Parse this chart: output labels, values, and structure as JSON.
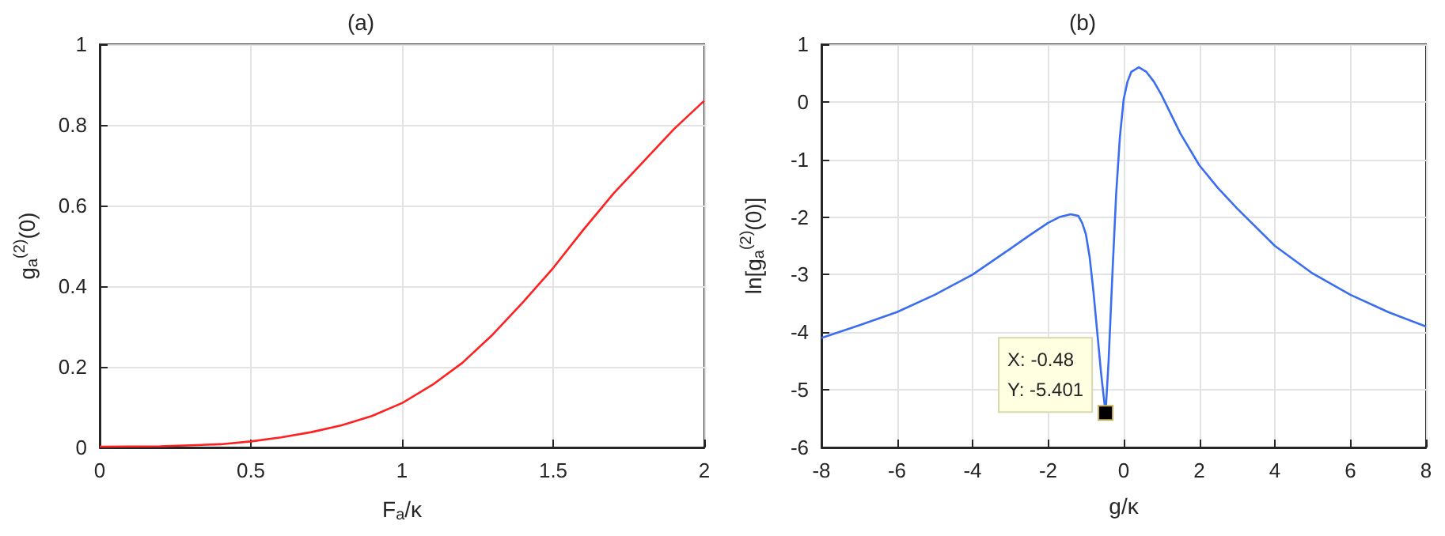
{
  "chart_data": [
    {
      "type": "line",
      "title": "(a)",
      "xlabel": "F$_{a}$/κ",
      "ylabel": "g$_{a}$$^{(2)}$(0)",
      "x": [
        0,
        0.2,
        0.4,
        0.5,
        0.6,
        0.7,
        0.8,
        0.9,
        1.0,
        1.1,
        1.2,
        1.3,
        1.4,
        1.5,
        1.6,
        1.7,
        1.8,
        1.9,
        2.0
      ],
      "series": [
        {
          "color": "#ff2020",
          "values": [
            0.002,
            0.003,
            0.008,
            0.015,
            0.025,
            0.038,
            0.055,
            0.078,
            0.11,
            0.155,
            0.21,
            0.28,
            0.36,
            0.445,
            0.54,
            0.63,
            0.71,
            0.79,
            0.86
          ]
        }
      ],
      "xlim": [
        0,
        2
      ],
      "xticks": [
        0,
        0.5,
        1,
        1.5,
        2
      ],
      "ylim": [
        0,
        1
      ],
      "yticks": [
        0,
        0.2,
        0.4,
        0.6,
        0.8,
        1
      ],
      "grid": true,
      "marker": "none",
      "line_style": "solid"
    },
    {
      "type": "line",
      "title": "(b)",
      "xlabel": "g/κ",
      "ylabel": "ln[g$_{a}$$^{(2)}$(0)]",
      "x": [
        -8,
        -7,
        -6,
        -5,
        -4,
        -3,
        -2.5,
        -2,
        -1.7,
        -1.4,
        -1.2,
        -1.1,
        -1.0,
        -0.9,
        -0.8,
        -0.7,
        -0.6,
        -0.55,
        -0.48,
        -0.4,
        -0.3,
        -0.2,
        -0.1,
        0,
        0.1,
        0.2,
        0.4,
        0.6,
        0.8,
        1,
        1.5,
        2,
        2.5,
        3,
        4,
        5,
        6,
        7,
        8
      ],
      "series": [
        {
          "color": "#3a6df0",
          "values": [
            -4.1,
            -3.88,
            -3.65,
            -3.35,
            -3.0,
            -2.55,
            -2.32,
            -2.1,
            -2.0,
            -1.95,
            -1.98,
            -2.1,
            -2.3,
            -2.7,
            -3.3,
            -4.0,
            -4.7,
            -5.0,
            -5.401,
            -4.5,
            -3.0,
            -1.6,
            -0.6,
            0.05,
            0.35,
            0.52,
            0.6,
            0.52,
            0.35,
            0.12,
            -0.55,
            -1.1,
            -1.5,
            -1.85,
            -2.5,
            -2.98,
            -3.35,
            -3.65,
            -3.9
          ]
        }
      ],
      "xlim": [
        -8,
        8
      ],
      "xticks": [
        -8,
        -6,
        -4,
        -2,
        0,
        2,
        4,
        6,
        8
      ],
      "ylim": [
        -6,
        1
      ],
      "yticks": [
        -6,
        -5,
        -4,
        -3,
        -2,
        -1,
        0,
        1
      ],
      "grid": true,
      "marker": "none",
      "line_style": "solid",
      "annotations": [
        {
          "text": "X: -0.48\nY: -5.401",
          "x": -0.48,
          "y": -5.401
        }
      ]
    }
  ]
}
